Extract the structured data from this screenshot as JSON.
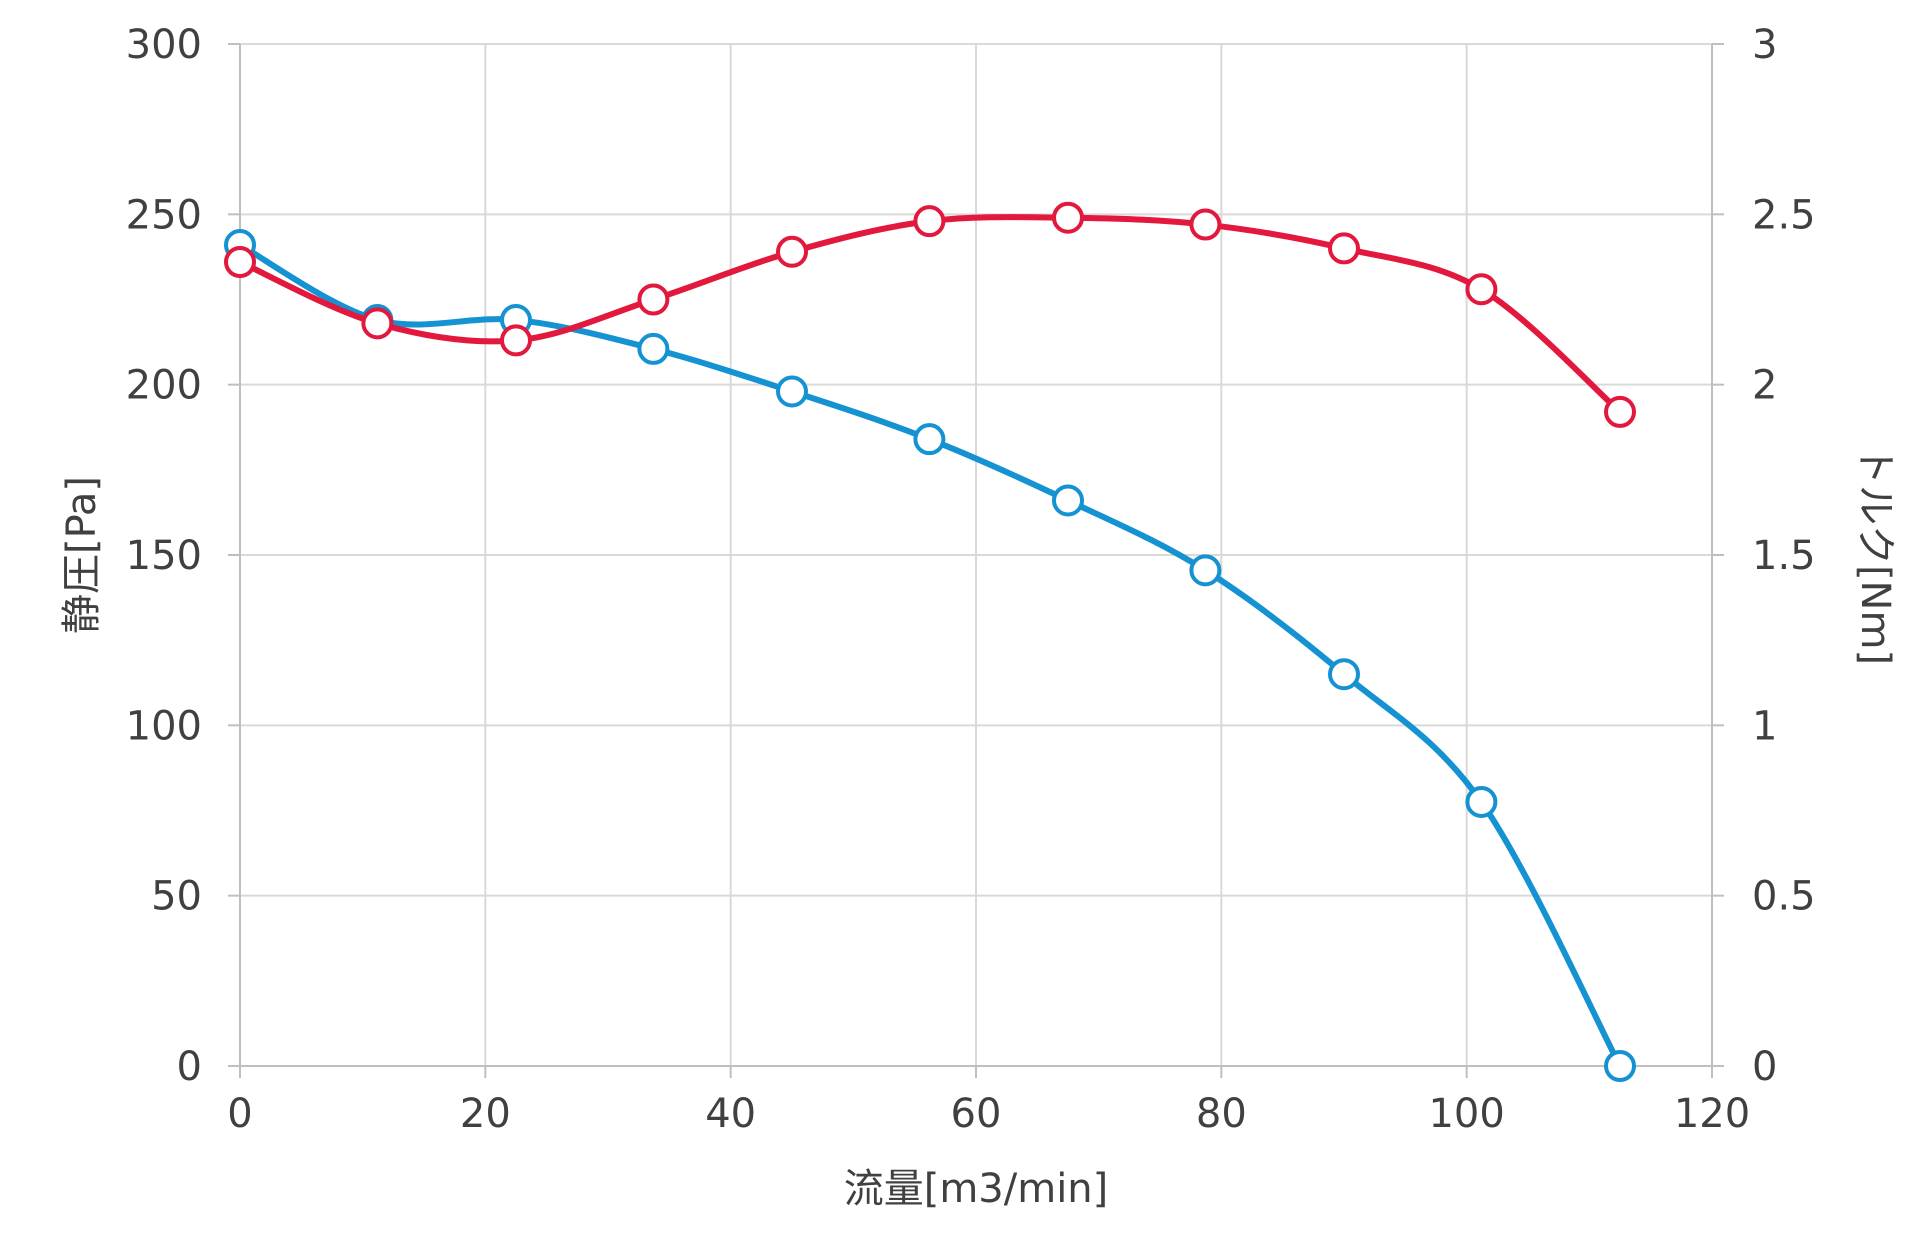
{
  "chart_data": {
    "type": "line",
    "xlabel": "流量[m3/min]",
    "ylabel": "静圧[Pa]",
    "y2label": "トルク[Nm]",
    "xlim": [
      0,
      120
    ],
    "ylim": [
      0,
      300
    ],
    "y2lim": [
      0,
      3
    ],
    "xticks": [
      "0",
      "20",
      "40",
      "60",
      "80",
      "100",
      "120"
    ],
    "yticks": [
      "0",
      "50",
      "100",
      "150",
      "200",
      "250",
      "300"
    ],
    "y2ticks": [
      "0",
      "0.5",
      "1",
      "1.5",
      "2",
      "2.5",
      "3"
    ],
    "grid": true,
    "legend": "none",
    "series": [
      {
        "axis": "left",
        "color": "#1592D1",
        "marker": "open-circle",
        "smooth": true,
        "x": [
          0,
          11.2,
          22.5,
          33.7,
          45.0,
          56.2,
          67.5,
          78.7,
          90.0,
          101.2,
          112.5
        ],
        "y": [
          241,
          219,
          219,
          210.5,
          198,
          184,
          166,
          145.5,
          115,
          77.5,
          0
        ]
      },
      {
        "axis": "right",
        "color": "#E2183C",
        "marker": "open-circle",
        "smooth": true,
        "x": [
          0,
          11.2,
          22.5,
          33.7,
          45.0,
          56.2,
          67.5,
          78.7,
          90.0,
          101.2,
          112.5
        ],
        "y": [
          2.36,
          2.18,
          2.13,
          2.25,
          2.39,
          2.48,
          2.49,
          2.47,
          2.4,
          2.28,
          1.92
        ]
      }
    ]
  }
}
